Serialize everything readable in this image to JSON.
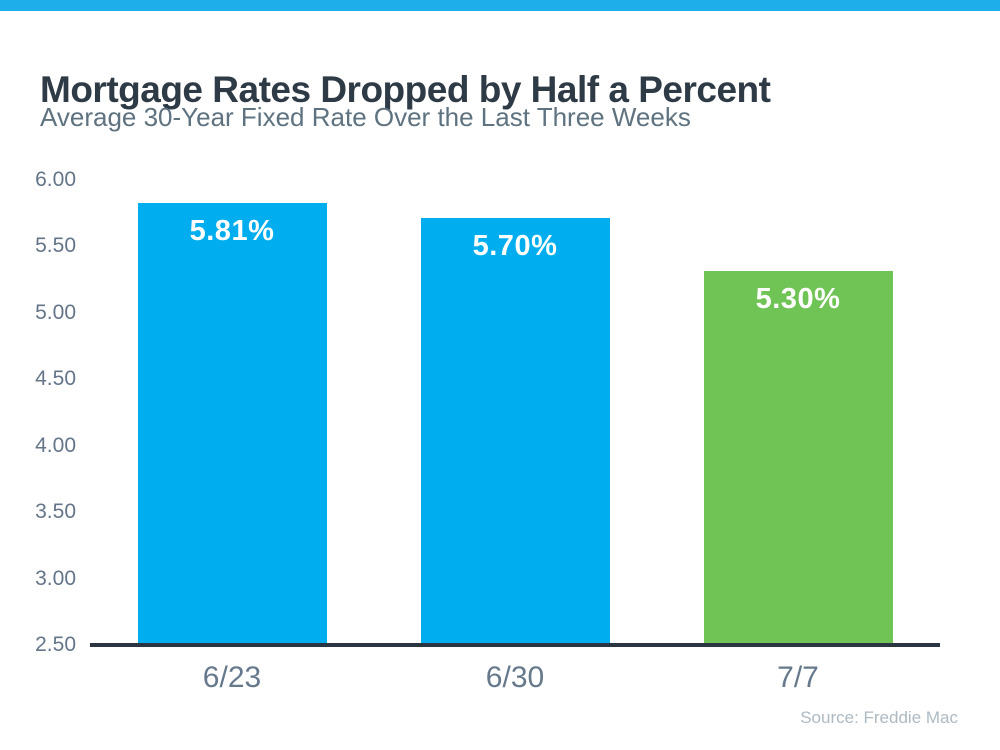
{
  "chart_data": {
    "type": "bar",
    "title": "Mortgage Rates Dropped by Half a Percent",
    "subtitle": "Average 30-Year Fixed Rate Over the Last Three Weeks",
    "categories": [
      "6/23",
      "6/30",
      "7/7"
    ],
    "values": [
      5.81,
      5.7,
      5.3
    ],
    "bar_labels": [
      "5.81%",
      "5.70%",
      "5.30%"
    ],
    "bar_colors": [
      "#00AEEF",
      "#00AEEF",
      "#70C355"
    ],
    "xlabel": "",
    "ylabel": "",
    "ylim": [
      2.5,
      6.0
    ],
    "ytick_step": 0.5,
    "ytick_labels": [
      "6.00",
      "5.50",
      "5.00",
      "4.50",
      "4.00",
      "3.50",
      "3.00",
      "2.50"
    ],
    "grid": false,
    "legend": false,
    "source": "Source: Freddie Mac"
  },
  "colors": {
    "accent_band": "#1EAEE9",
    "title_text": "#2E3A45",
    "subtitle_text": "#5E7280",
    "tick_text": "#64758A",
    "x_label_text": "#66798C",
    "axis_line": "#2B3542",
    "bar_label_text": "#FFFFFF",
    "source_text": "#AEBAC3",
    "background": "#FFFFFF"
  }
}
